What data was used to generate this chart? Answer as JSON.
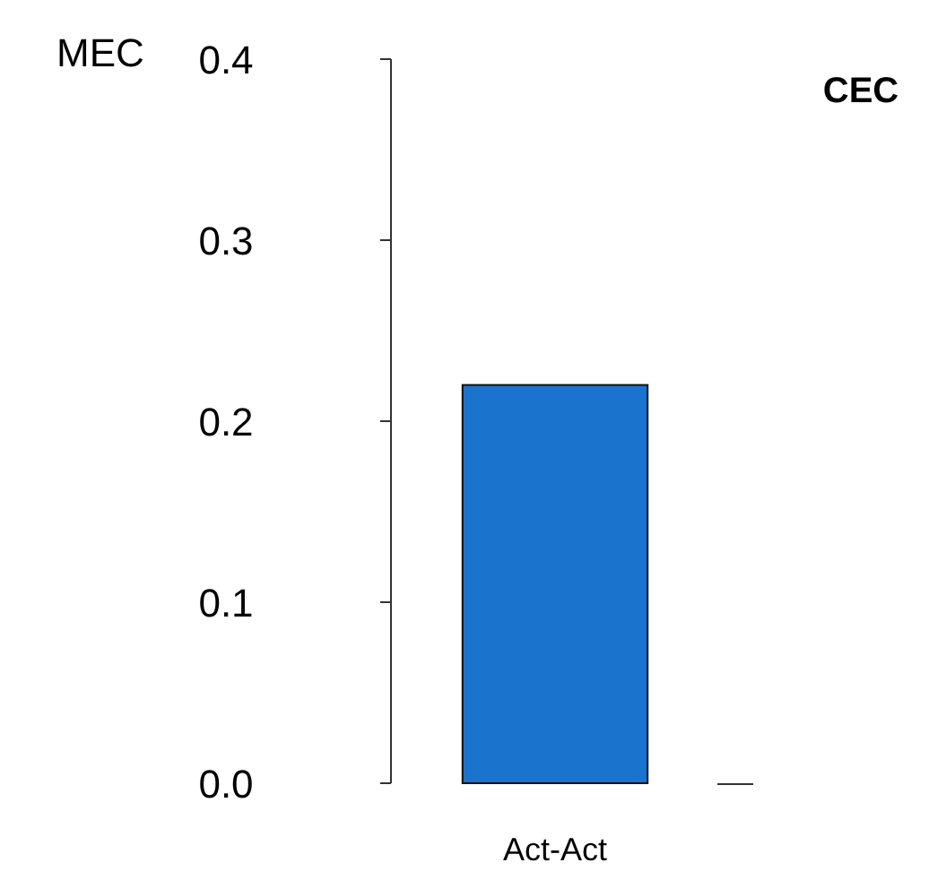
{
  "chart_data": {
    "type": "bar",
    "title": "CEC",
    "ylabel": "MEC",
    "categories": [
      "Act-Act"
    ],
    "values": [
      0.22
    ],
    "color": "#1a73cc",
    "ylim": [
      0,
      0.4
    ],
    "yticks": [
      {
        "value": 0,
        "label": "0.0"
      },
      {
        "value": 0.1,
        "label": "0.1"
      },
      {
        "value": 0.2,
        "label": "0.2"
      },
      {
        "value": 0.3,
        "label": "0.3"
      },
      {
        "value": 0.4,
        "label": "0.4"
      }
    ]
  }
}
